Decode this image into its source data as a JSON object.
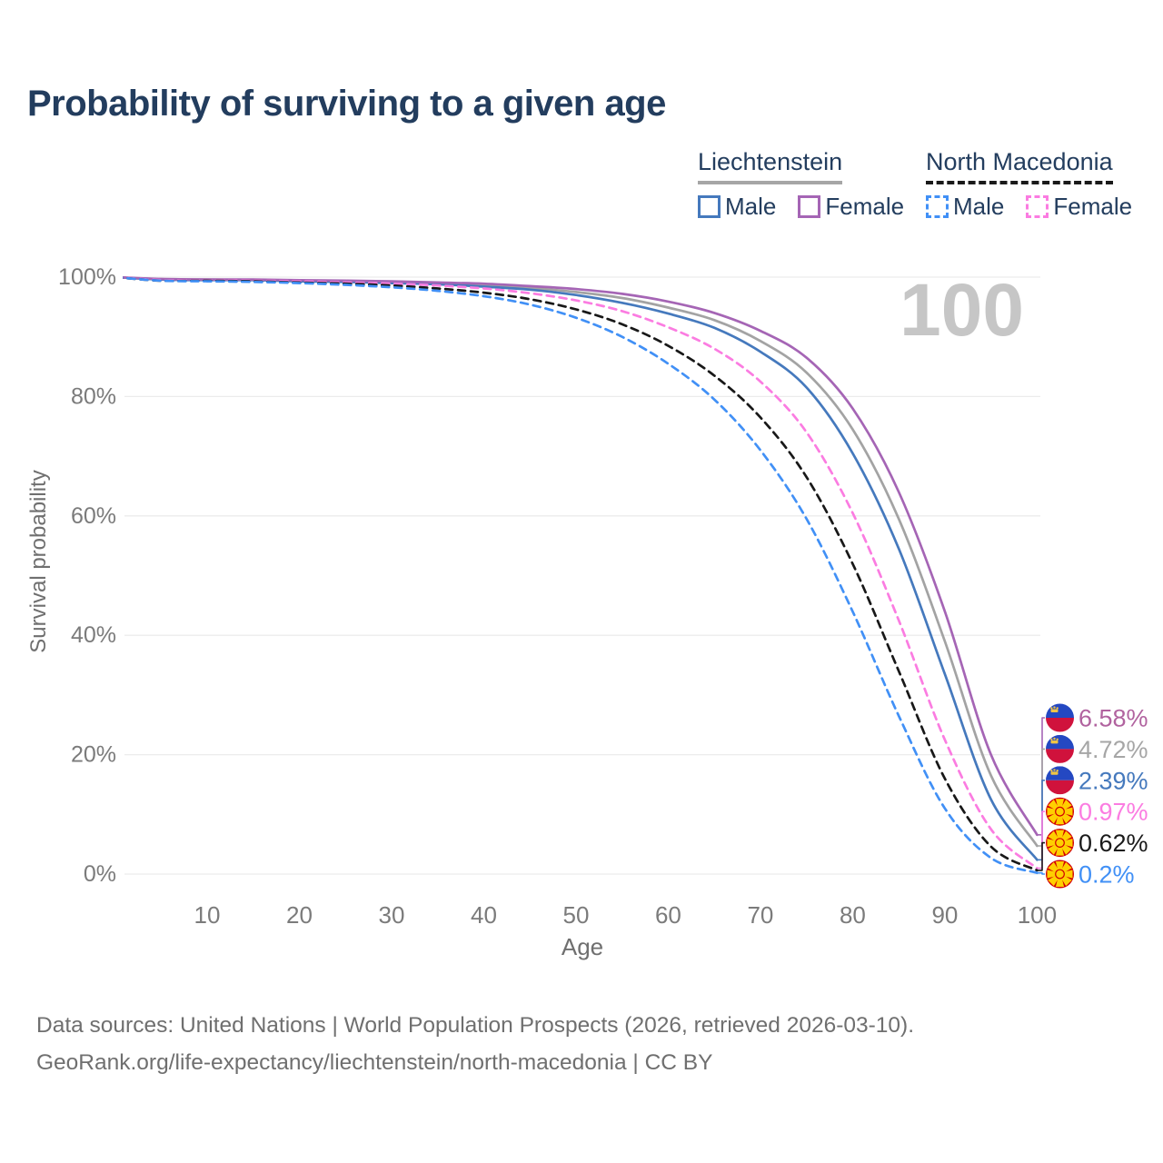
{
  "title": "Probability of surviving to a given age",
  "watermark": "100",
  "legend": {
    "groups": [
      {
        "label": "Liechtenstein",
        "underline_style": "solid",
        "underline_color": "#a6a6a6",
        "items": [
          {
            "label": "Male",
            "color": "#4579bd",
            "line_style": "solid"
          },
          {
            "label": "Female",
            "color": "#a565b5",
            "line_style": "solid"
          }
        ]
      },
      {
        "label": "North Macedonia",
        "underline_style": "dashed",
        "underline_color": "#1a1a1a",
        "items": [
          {
            "label": "Male",
            "color": "#4190f6",
            "line_style": "dashed"
          },
          {
            "label": "Female",
            "color": "#fb7ce1",
            "line_style": "dashed"
          }
        ]
      }
    ]
  },
  "chart_data": {
    "type": "line",
    "title": "Probability of surviving to a given age",
    "xlabel": "Age",
    "ylabel": "Survival probability",
    "xlim": [
      0,
      100
    ],
    "ylim": [
      0,
      100
    ],
    "grid": "horizontal",
    "gridline_color": "#ececec",
    "tick_label_color": "#7b7b7b",
    "x_ticks": [
      10,
      20,
      30,
      40,
      50,
      60,
      70,
      80,
      90,
      100
    ],
    "y_ticks": [
      {
        "value": 100,
        "label": "100%"
      },
      {
        "value": 80,
        "label": "80%"
      },
      {
        "value": 60,
        "label": "60%"
      },
      {
        "value": 40,
        "label": "40%"
      },
      {
        "value": 20,
        "label": "20%"
      },
      {
        "value": 0,
        "label": "0%"
      }
    ],
    "x": [
      0,
      5,
      10,
      15,
      20,
      25,
      30,
      35,
      40,
      45,
      50,
      55,
      60,
      65,
      70,
      75,
      80,
      85,
      90,
      95,
      100
    ],
    "series": [
      {
        "name": "Liechtenstein Female",
        "country": "Liechtenstein",
        "sex": "Female",
        "color": "#a565b5",
        "label_color": "#b1639f",
        "line_style": "solid",
        "flag": "liechtenstein",
        "end_label": "6.58%",
        "values": [
          100,
          99.7,
          99.6,
          99.6,
          99.5,
          99.4,
          99.3,
          99.1,
          98.9,
          98.5,
          98.0,
          97.2,
          95.9,
          94.0,
          91.0,
          86.5,
          78.0,
          64.0,
          44.0,
          20.0,
          6.58
        ]
      },
      {
        "name": "Liechtenstein Total",
        "country": "Liechtenstein",
        "sex": "Total",
        "color": "#a3a3a3",
        "label_color": "#a6a6a6",
        "line_style": "solid",
        "flag": "liechtenstein",
        "end_label": "4.72%",
        "values": [
          100,
          99.6,
          99.6,
          99.5,
          99.4,
          99.3,
          99.2,
          99.0,
          98.7,
          98.2,
          97.5,
          96.5,
          94.9,
          92.8,
          89.3,
          84.0,
          74.5,
          59.5,
          39.0,
          16.5,
          4.72
        ]
      },
      {
        "name": "Liechtenstein Male",
        "country": "Liechtenstein",
        "sex": "Male",
        "color": "#4579bd",
        "label_color": "#4579bd",
        "line_style": "solid",
        "flag": "liechtenstein",
        "end_label": "2.39%",
        "values": [
          100,
          99.6,
          99.5,
          99.5,
          99.3,
          99.2,
          99.0,
          98.8,
          98.4,
          97.9,
          97.0,
          95.7,
          93.9,
          91.5,
          87.5,
          81.5,
          70.5,
          54.5,
          33.5,
          12.5,
          2.39
        ]
      },
      {
        "name": "North Macedonia Female",
        "country": "North Macedonia",
        "sex": "Female",
        "color": "#fb7ce1",
        "label_color": "#fb7ce1",
        "line_style": "dashed",
        "flag": "north-macedonia",
        "end_label": "0.97%",
        "values": [
          100,
          99.5,
          99.5,
          99.4,
          99.3,
          99.1,
          98.9,
          98.6,
          98.1,
          97.3,
          96.1,
          94.3,
          91.6,
          88.0,
          82.5,
          74.0,
          60.5,
          42.5,
          22.5,
          7.5,
          0.97
        ]
      },
      {
        "name": "North Macedonia Total",
        "country": "North Macedonia",
        "sex": "Total",
        "color": "#181818",
        "label_color": "#1a1a1a",
        "line_style": "dashed",
        "flag": "north-macedonia",
        "end_label": "0.62%",
        "values": [
          100,
          99.4,
          99.4,
          99.3,
          99.1,
          98.9,
          98.6,
          98.1,
          97.4,
          96.3,
          94.6,
          92.1,
          88.5,
          83.5,
          76.5,
          66.5,
          52.0,
          34.0,
          16.0,
          4.6,
          0.62
        ]
      },
      {
        "name": "North Macedonia Male",
        "country": "North Macedonia",
        "sex": "Male",
        "color": "#4190f6",
        "label_color": "#4190f6",
        "line_style": "dashed",
        "flag": "north-macedonia",
        "end_label": "0.2%",
        "values": [
          100,
          99.4,
          99.3,
          99.2,
          99.0,
          98.7,
          98.3,
          97.7,
          96.8,
          95.4,
          93.2,
          90.0,
          85.5,
          79.5,
          71.0,
          59.5,
          44.0,
          26.5,
          11.0,
          2.7,
          0.2
        ]
      }
    ]
  },
  "flags": {
    "liechtenstein": {
      "blue": "#2448c2",
      "red": "#d0123c",
      "gold": "#f0c445"
    },
    "north-macedonia": {
      "red": "#d20000",
      "yellow": "#ffcf00"
    }
  },
  "footer": {
    "line1": "Data sources: United Nations | World Population Prospects (2026, retrieved 2026-03-10).",
    "line2": "GeoRank.org/life-expectancy/liechtenstein/north-macedonia | CC BY"
  }
}
